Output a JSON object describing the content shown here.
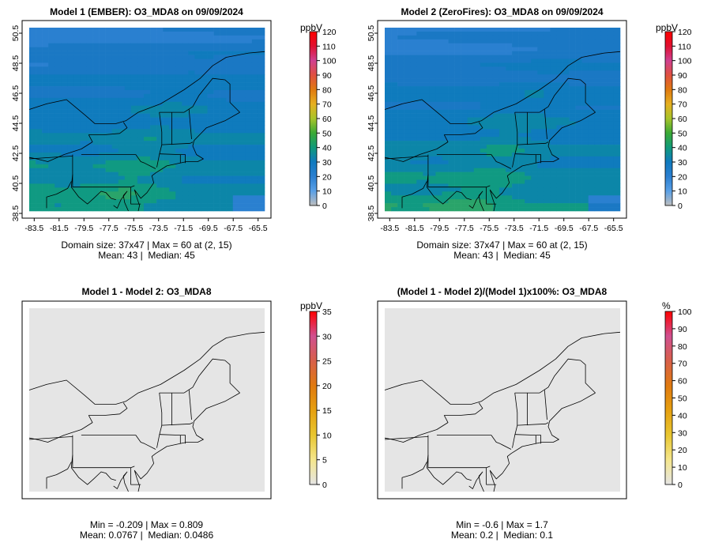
{
  "chart_data": [
    {
      "type": "heatmap",
      "title": "Model 1 (EMBER): O3_MDA8 on 09/09/2024",
      "x_ticks": [
        "-83.5",
        "-81.5",
        "-79.5",
        "-77.5",
        "-75.5",
        "-73.5",
        "-71.5",
        "-69.5",
        "-67.5",
        "-65.5"
      ],
      "y_ticks": [
        "38.5",
        "40.5",
        "42.5",
        "44.5",
        "46.5",
        "48.5",
        "50.5"
      ],
      "colorbar": {
        "unit": "ppbV",
        "ticks": [
          "0",
          "10",
          "20",
          "30",
          "40",
          "50",
          "60",
          "70",
          "80",
          "90",
          "100",
          "110",
          "120"
        ],
        "range": [
          0,
          120
        ]
      },
      "caption": [
        "Domain size: 37x47 | Max = 60 at (2, 15)",
        "Mean: 43 |  Median: 45"
      ]
    },
    {
      "type": "heatmap",
      "title": "Model 2 (ZeroFires): O3_MDA8 on 09/09/2024",
      "x_ticks": [
        "-83.5",
        "-81.5",
        "-79.5",
        "-77.5",
        "-75.5",
        "-73.5",
        "-71.5",
        "-69.5",
        "-67.5",
        "-65.5"
      ],
      "y_ticks": [
        "38.5",
        "40.5",
        "42.5",
        "44.5",
        "46.5",
        "48.5",
        "50.5"
      ],
      "colorbar": {
        "unit": "ppbV",
        "ticks": [
          "0",
          "10",
          "20",
          "30",
          "40",
          "50",
          "60",
          "70",
          "80",
          "90",
          "100",
          "110",
          "120"
        ],
        "range": [
          0,
          120
        ]
      },
      "caption": [
        "Domain size: 37x47 | Max = 60 at (2, 15)",
        "Mean: 43 |  Median: 45"
      ]
    },
    {
      "type": "heatmap",
      "title": "Model 1 - Model 2: O3_MDA8",
      "x_ticks": [],
      "y_ticks": [],
      "colorbar": {
        "unit": "ppbV",
        "ticks": [
          "0",
          "5",
          "10",
          "15",
          "20",
          "25",
          "30",
          "35"
        ],
        "range": [
          0,
          35
        ]
      },
      "caption": [
        "Min = -0.209 | Max = 0.809",
        "Mean: 0.0767 |  Median: 0.0486"
      ]
    },
    {
      "type": "heatmap",
      "title": "(Model 1 - Model 2)/(Model 1)x100%: O3_MDA8",
      "x_ticks": [],
      "y_ticks": [],
      "colorbar": {
        "unit": "%",
        "ticks": [
          "0",
          "10",
          "20",
          "30",
          "40",
          "50",
          "60",
          "70",
          "80",
          "90",
          "100"
        ],
        "range": [
          0,
          100
        ]
      },
      "caption": [
        "Min = -0.6 | Max = 1.7",
        "Mean: 0.2 |  Median: 0.1"
      ]
    }
  ],
  "colors": {
    "concentration_scale": [
      "#bebebe",
      "#5aa0e6",
      "#2b7fd0",
      "#0f7abf",
      "#109a7a",
      "#3aaa35",
      "#a8c42a",
      "#e6b020",
      "#e07a10",
      "#e05040",
      "#d04090",
      "#e01030",
      "#ff0000"
    ],
    "difference_scale": [
      "#e5e5e5",
      "#f5e68c",
      "#e8c630",
      "#e6a010",
      "#e07a10",
      "#d8604a",
      "#d05090",
      "#ff0000"
    ],
    "border": "#000000",
    "difference_fill": "#e5e5e5"
  }
}
